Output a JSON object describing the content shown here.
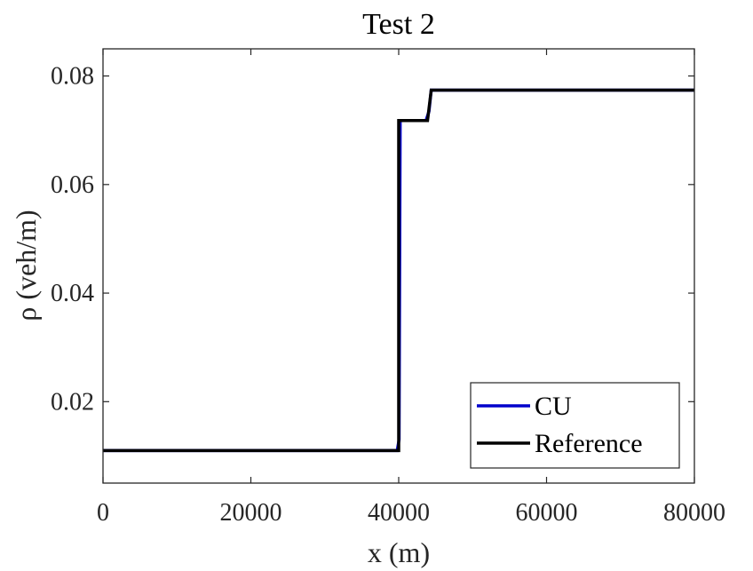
{
  "chart_data": {
    "type": "line",
    "title": "Test 2",
    "xlabel": "x (m)",
    "ylabel": "ρ (veh/m)",
    "xlim": [
      0,
      80000
    ],
    "ylim": [
      0.005,
      0.085
    ],
    "xticks": [
      0,
      20000,
      40000,
      60000,
      80000
    ],
    "xtick_labels": [
      "0",
      "20000",
      "40000",
      "60000",
      "80000"
    ],
    "yticks": [
      0.02,
      0.04,
      0.06,
      0.08
    ],
    "ytick_labels": [
      "0.02",
      "0.04",
      "0.06",
      "0.08"
    ],
    "grid": false,
    "legend_position": "bottom-right",
    "series": [
      {
        "name": "CU",
        "color": "#0000cc",
        "x": [
          0,
          39800,
          40050,
          40200,
          43700,
          44100,
          44400,
          80000
        ],
        "y": [
          0.011,
          0.011,
          0.013,
          0.0718,
          0.0718,
          0.0735,
          0.0774,
          0.0774
        ]
      },
      {
        "name": "Reference",
        "color": "#000000",
        "x": [
          0,
          40000,
          40000,
          43900,
          44400,
          80000
        ],
        "y": [
          0.011,
          0.011,
          0.0718,
          0.0718,
          0.0774,
          0.0774
        ]
      }
    ]
  }
}
